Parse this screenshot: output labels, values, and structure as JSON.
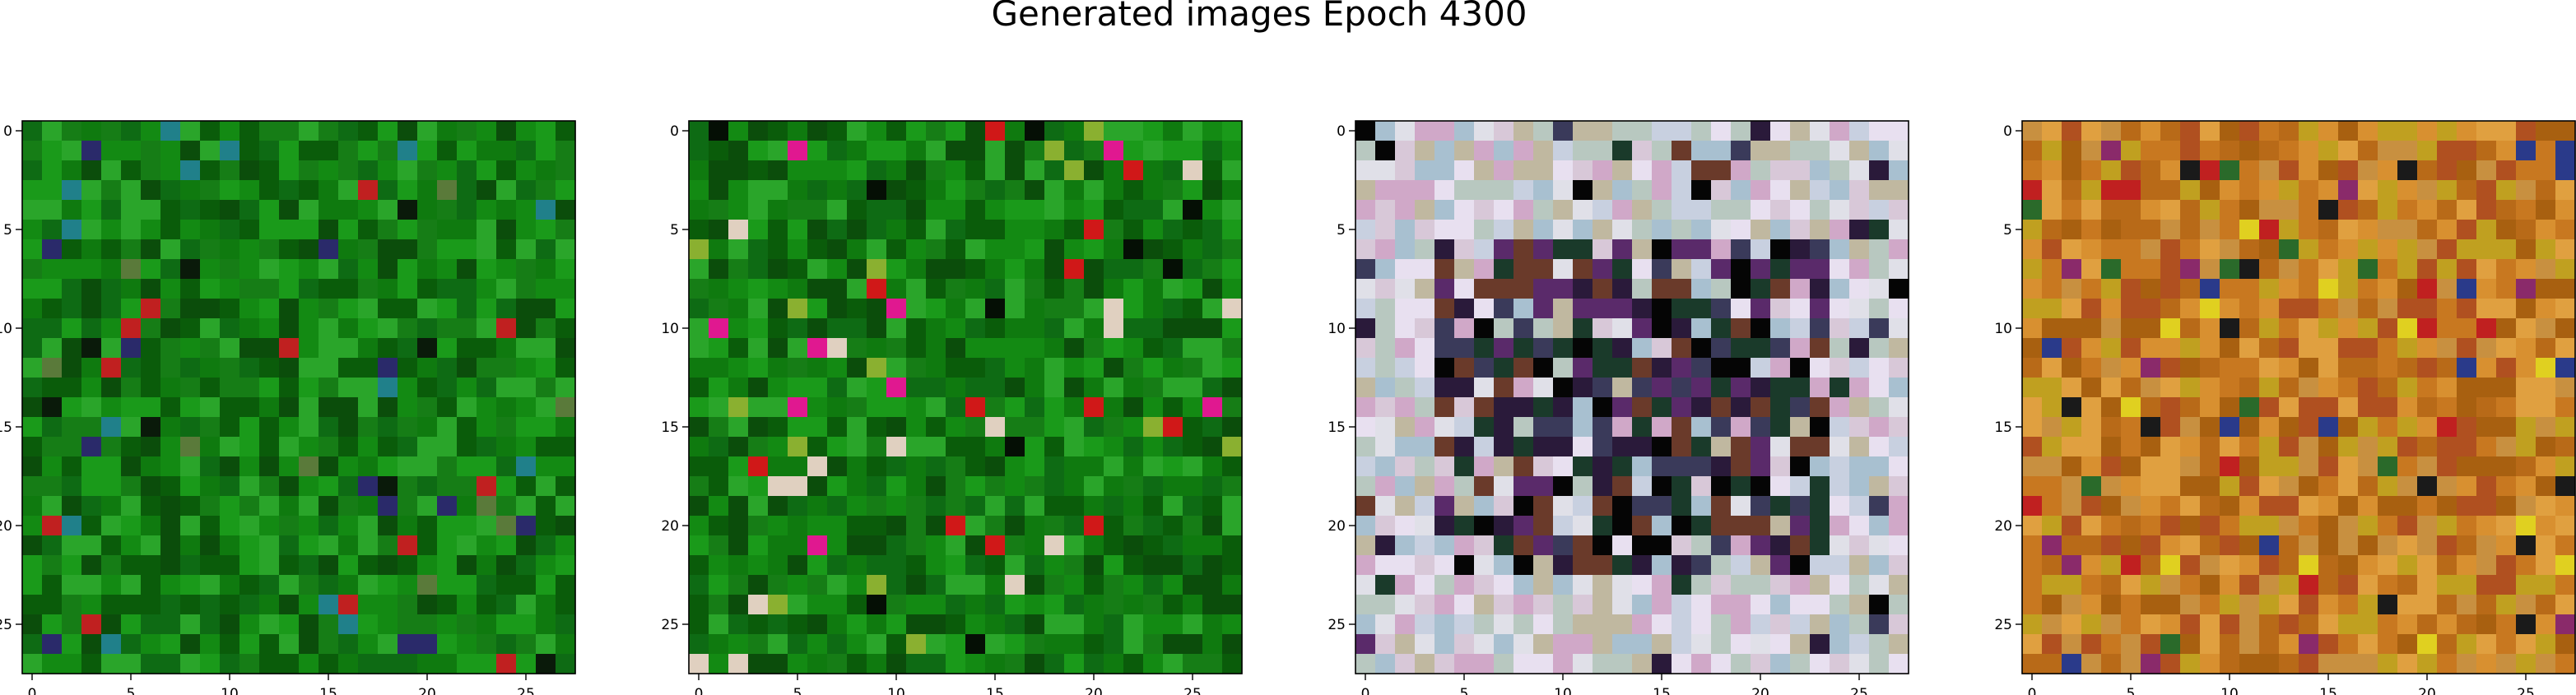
{
  "chart_data": {
    "type": "heatmap",
    "title": "Generated images Epoch 4300",
    "panels": [
      {
        "name": "",
        "grid_size": 28,
        "xticks": [
          0,
          5,
          10,
          15,
          20,
          25
        ],
        "yticks": [
          0,
          5,
          10,
          15,
          20,
          25
        ],
        "xlim": [
          -0.5,
          27.5
        ],
        "ylim": [
          27.5,
          -0.5
        ],
        "palette": [
          "#0a5c0a",
          "#0f7a0f",
          "#138a13",
          "#1a9a1a",
          "#0b4d0b",
          "#2aa52a",
          "#0e6b14",
          "#167d16"
        ],
        "accent": [
          "#0a1a0a",
          "#2a2a6a",
          "#20808a",
          "#c02020",
          "#5a7a3a"
        ]
      },
      {
        "name": "",
        "grid_size": 28,
        "xticks": [
          0,
          5,
          10,
          15,
          20,
          25
        ],
        "yticks": [
          0,
          5,
          10,
          15,
          20,
          25
        ],
        "xlim": [
          -0.5,
          27.5
        ],
        "ylim": [
          27.5,
          -0.5
        ],
        "palette": [
          "#0a5c0a",
          "#0f7a0f",
          "#138a13",
          "#1a9a1a",
          "#0b4d0b",
          "#2aa52a",
          "#0e6b14",
          "#167d16"
        ],
        "accent": [
          "#050f05",
          "#d01818",
          "#e01890",
          "#e0d0c0",
          "#8ab030"
        ]
      },
      {
        "name": "",
        "grid_size": 28,
        "xticks": [
          0,
          5,
          10,
          15,
          20,
          25
        ],
        "yticks": [
          0,
          5,
          10,
          15,
          20,
          25
        ],
        "xlim": [
          -0.5,
          27.5
        ],
        "ylim": [
          27.5,
          -0.5
        ],
        "palette": [
          "#d8c8d8",
          "#c8d0e0",
          "#e0e0e8",
          "#b8c8c0",
          "#d0a8c8",
          "#c0b8a0",
          "#e8e0f0",
          "#a8c0d0"
        ],
        "accent": [
          "#050505",
          "#2a1a3a",
          "#1a3a2a",
          "#5a2a6a",
          "#3a3a5a",
          "#6a3a2a"
        ]
      },
      {
        "name": "",
        "grid_size": 28,
        "xticks": [
          0,
          5,
          10,
          15,
          20,
          25
        ],
        "yticks": [
          0,
          5,
          10,
          15,
          20,
          25
        ],
        "xlim": [
          -0.5,
          27.5
        ],
        "ylim": [
          27.5,
          -0.5
        ],
        "palette": [
          "#c87820",
          "#b86a18",
          "#d89030",
          "#a86010",
          "#c0a020",
          "#e0a040",
          "#b05020",
          "#c89040"
        ],
        "accent": [
          "#c02020",
          "#2a3a8a",
          "#2a6a2a",
          "#e0d020",
          "#1a1a1a",
          "#8a2a6a"
        ]
      }
    ]
  }
}
